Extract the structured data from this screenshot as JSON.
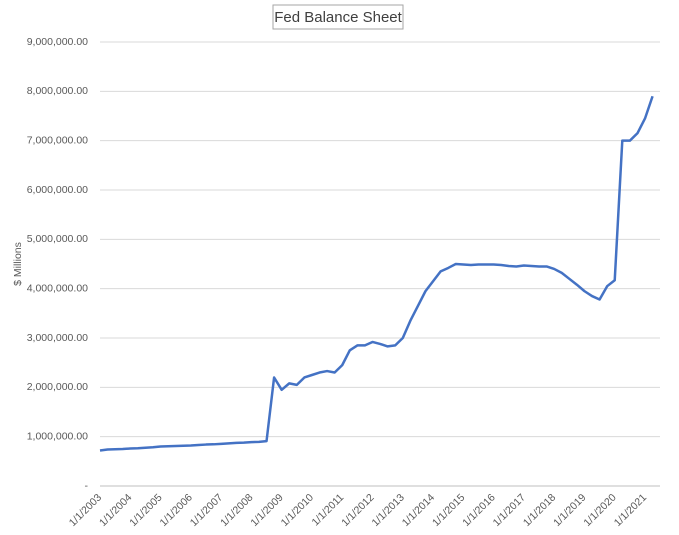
{
  "chart_data": {
    "type": "line",
    "title": "Fed Balance Sheet",
    "y_label": "$ Millions",
    "categories": [
      "1/1/2003",
      null,
      null,
      null,
      "1/1/2004",
      null,
      null,
      null,
      "1/1/2005",
      null,
      null,
      null,
      "1/1/2006",
      null,
      null,
      null,
      "1/1/2007",
      null,
      null,
      null,
      "1/1/2008",
      null,
      null,
      null,
      "1/1/2009",
      null,
      null,
      null,
      "1/1/2010",
      null,
      null,
      null,
      "1/1/2011",
      null,
      null,
      null,
      "1/1/2012",
      null,
      null,
      null,
      "1/1/2013",
      null,
      null,
      null,
      "1/1/2014",
      null,
      null,
      null,
      "1/1/2015",
      null,
      null,
      null,
      "1/1/2016",
      null,
      null,
      null,
      "1/1/2017",
      null,
      null,
      null,
      "1/1/2018",
      null,
      null,
      null,
      "1/1/2019",
      null,
      null,
      null,
      "1/1/2020",
      null,
      null,
      null,
      "1/1/2021",
      null
    ],
    "values": [
      720000,
      740000,
      745000,
      750000,
      760000,
      765000,
      775000,
      785000,
      800000,
      805000,
      810000,
      815000,
      820000,
      830000,
      840000,
      845000,
      855000,
      865000,
      875000,
      880000,
      890000,
      895000,
      910000,
      2200000,
      1950000,
      2080000,
      2050000,
      2200000,
      2250000,
      2300000,
      2330000,
      2300000,
      2450000,
      2750000,
      2850000,
      2850000,
      2920000,
      2880000,
      2830000,
      2850000,
      3000000,
      3350000,
      3650000,
      3950000,
      4150000,
      4350000,
      4420000,
      4500000,
      4490000,
      4480000,
      4490000,
      4490000,
      4490000,
      4480000,
      4460000,
      4450000,
      4470000,
      4460000,
      4450000,
      4450000,
      4400000,
      4320000,
      4200000,
      4080000,
      3950000,
      3850000,
      3780000,
      4050000,
      4170000,
      7000000,
      7000000,
      7150000,
      7450000,
      7900000
    ],
    "color": "#4472c4",
    "ylim": [
      0,
      9000000
    ],
    "yticks": [
      {
        "value": 0,
        "label": "-"
      },
      {
        "value": 1000000,
        "label": "1,000,000.00"
      },
      {
        "value": 2000000,
        "label": "2,000,000.00"
      },
      {
        "value": 3000000,
        "label": "3,000,000.00"
      },
      {
        "value": 4000000,
        "label": "4,000,000.00"
      },
      {
        "value": 5000000,
        "label": "5,000,000.00"
      },
      {
        "value": 6000000,
        "label": "6,000,000.00"
      },
      {
        "value": 7000000,
        "label": "7,000,000.00"
      },
      {
        "value": 8000000,
        "label": "8,000,000.00"
      },
      {
        "value": 9000000,
        "label": "9,000,000.00"
      }
    ],
    "grid": true
  }
}
